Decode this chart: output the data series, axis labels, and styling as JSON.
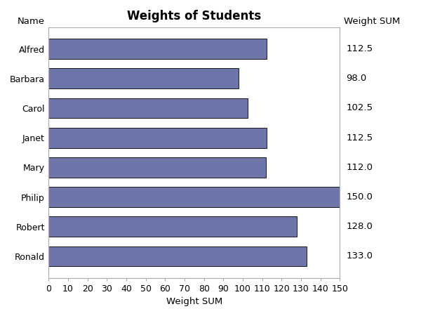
{
  "title": "Weights of Students",
  "names": [
    "Alfred",
    "Barbara",
    "Carol",
    "Janet",
    "Mary",
    "Philip",
    "Robert",
    "Ronald"
  ],
  "values": [
    112.5,
    98.0,
    102.5,
    112.5,
    112.0,
    150.0,
    128.0,
    133.0
  ],
  "bar_color": "#6E75A8",
  "bar_edge_color": "#1a1a1a",
  "xlabel": "Weight SUM",
  "ylabel_left": "Name",
  "ylabel_right": "Weight SUM",
  "xlim": [
    0,
    150
  ],
  "xticks": [
    0,
    10,
    20,
    30,
    40,
    50,
    60,
    70,
    80,
    90,
    100,
    110,
    120,
    130,
    140,
    150
  ],
  "background_color": "#ffffff",
  "plot_bg_color": "#ffffff",
  "spine_color": "#aaaaaa",
  "title_fontsize": 12,
  "label_fontsize": 9.5,
  "tick_fontsize": 9,
  "annotation_fontsize": 9.5,
  "bar_height": 0.68
}
